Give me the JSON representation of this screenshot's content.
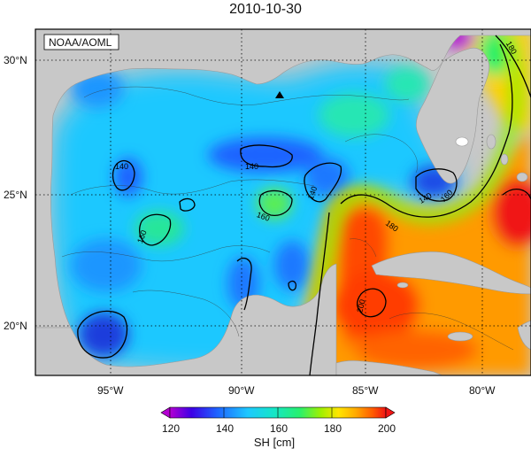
{
  "title": "2010-10-30",
  "source_label": "NOAA/AOML",
  "lat_ticks": [
    "30°N",
    "25°N",
    "20°N"
  ],
  "lon_ticks": [
    "95°W",
    "90°W",
    "85°W",
    "80°W"
  ],
  "contour_labels": [
    "140",
    "140",
    "140",
    "140",
    "160",
    "160",
    "160",
    "180",
    "180",
    "200"
  ],
  "colorbar": {
    "title": "SH [cm]",
    "ticks": [
      "120",
      "140",
      "160",
      "180",
      "200"
    ],
    "colors": [
      "#b400d2",
      "#3c00e6",
      "#1e64ff",
      "#1ec8ff",
      "#14e6c8",
      "#28f06e",
      "#a0f000",
      "#ffe600",
      "#ffaa00",
      "#ff5a00",
      "#f01414"
    ]
  },
  "marker": "triangle-marker"
}
